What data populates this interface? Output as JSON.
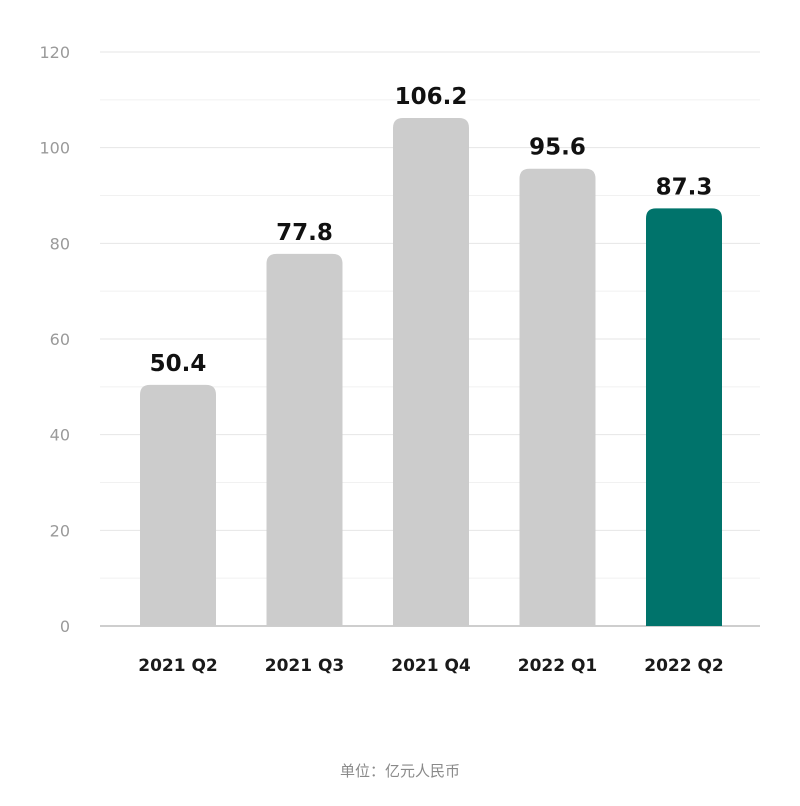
{
  "chart_data": {
    "type": "bar",
    "categories": [
      "2021 Q2",
      "2021 Q3",
      "2021 Q4",
      "2022 Q1",
      "2022 Q2"
    ],
    "values": [
      50.4,
      77.8,
      106.2,
      95.6,
      87.3
    ],
    "value_labels": [
      "50.4",
      "77.8",
      "106.2",
      "95.6",
      "87.3"
    ],
    "ylim": [
      0,
      120
    ],
    "yticks": [
      0,
      20,
      40,
      60,
      80,
      100,
      120
    ],
    "grid": true,
    "highlight_index": 4,
    "colors": {
      "bar": "#cccccc",
      "highlight": "#00736b",
      "grid": "#e6e6e6",
      "axis": "#bdbdbd"
    }
  },
  "footnote": "单位：亿元人民币"
}
